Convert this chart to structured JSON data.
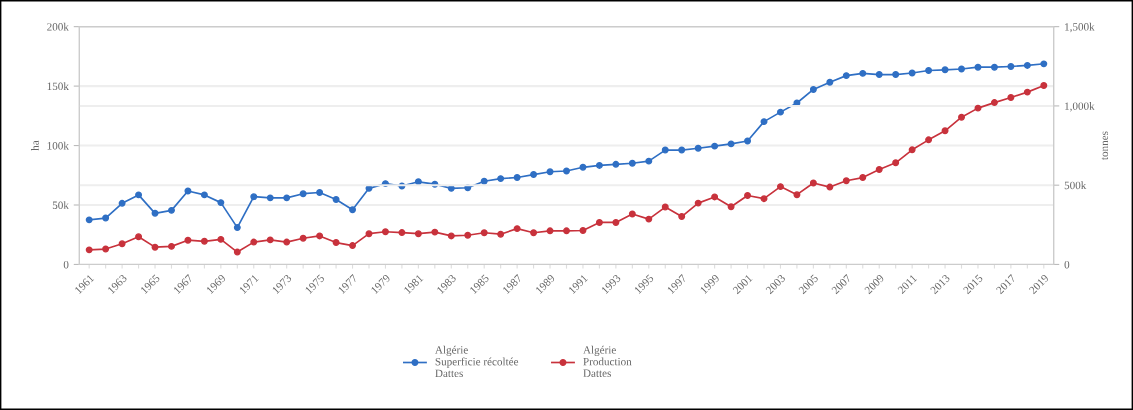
{
  "chart_data": {
    "type": "line",
    "categories": [
      "1961",
      null,
      "1963",
      null,
      "1965",
      null,
      "1967",
      null,
      "1969",
      null,
      "1971",
      null,
      "1973",
      null,
      "1975",
      null,
      "1977",
      null,
      "1979",
      null,
      "1981",
      null,
      "1983",
      null,
      "1985",
      null,
      "1987",
      null,
      "1989",
      null,
      "1991",
      null,
      "1993",
      null,
      "1995",
      null,
      "1997",
      null,
      "1999",
      null,
      "2001",
      null,
      "2003",
      null,
      "2005",
      null,
      "2007",
      null,
      "2009",
      null,
      "2011",
      null,
      "2013",
      null,
      "2015",
      null,
      "2017",
      null,
      "2019"
    ],
    "ylabel": "ha",
    "y2label": "tonnes",
    "ylim": [
      0,
      200000
    ],
    "yticks": [
      {
        "value": 0,
        "label": "0"
      },
      {
        "value": 50000,
        "label": "50k"
      },
      {
        "value": 100000,
        "label": "100k"
      },
      {
        "value": 150000,
        "label": "150k"
      },
      {
        "value": 200000,
        "label": "200k"
      }
    ],
    "y2lim": [
      0,
      1500000
    ],
    "y2ticks": [
      {
        "value": 0,
        "label": "0"
      },
      {
        "value": 500000,
        "label": "500k"
      },
      {
        "value": 1000000,
        "label": "1,000k"
      },
      {
        "value": 1500000,
        "label": "1,500k"
      }
    ],
    "series": [
      {
        "name": "Algérie\nSuperficie récoltée\nDattes",
        "color": "#2f6fc4",
        "values": [
          37500,
          39000,
          51400,
          58500,
          43000,
          45500,
          61800,
          58500,
          52000,
          31000,
          57000,
          56000,
          56000,
          59500,
          60500,
          54600,
          46000,
          64000,
          68000,
          66000,
          69500,
          67500,
          64000,
          64500,
          70000,
          72200,
          73100,
          75600,
          78000,
          78600,
          81700,
          83300,
          84200,
          85100,
          86900,
          96200,
          96200,
          97700,
          99500,
          101400,
          103800,
          120100,
          128100,
          135800,
          147200,
          153300,
          158800,
          160700,
          159700,
          159700,
          161000,
          163100,
          163700,
          164400,
          165900,
          165900,
          166500,
          167400,
          168700
        ]
      },
      {
        "name": "Algérie\nProduction\nDattes",
        "color": "#c8323c",
        "axis": "y2",
        "values": [
          92000,
          97000,
          131000,
          175000,
          109000,
          114000,
          153000,
          146000,
          158000,
          78000,
          141000,
          155000,
          141000,
          165000,
          180000,
          138000,
          119000,
          194000,
          206000,
          201000,
          194000,
          204000,
          180000,
          184000,
          200000,
          191000,
          226000,
          200000,
          212000,
          212000,
          214000,
          265000,
          265000,
          318000,
          286000,
          362000,
          302000,
          387000,
          426000,
          364000,
          435000,
          415000,
          491000,
          440000,
          514000,
          488000,
          528000,
          548000,
          599000,
          641000,
          723000,
          786000,
          843000,
          929000,
          986000,
          1021000,
          1053000,
          1087000,
          1129000
        ]
      }
    ],
    "marker": "circle",
    "grid": "y",
    "legend": "bottom"
  }
}
